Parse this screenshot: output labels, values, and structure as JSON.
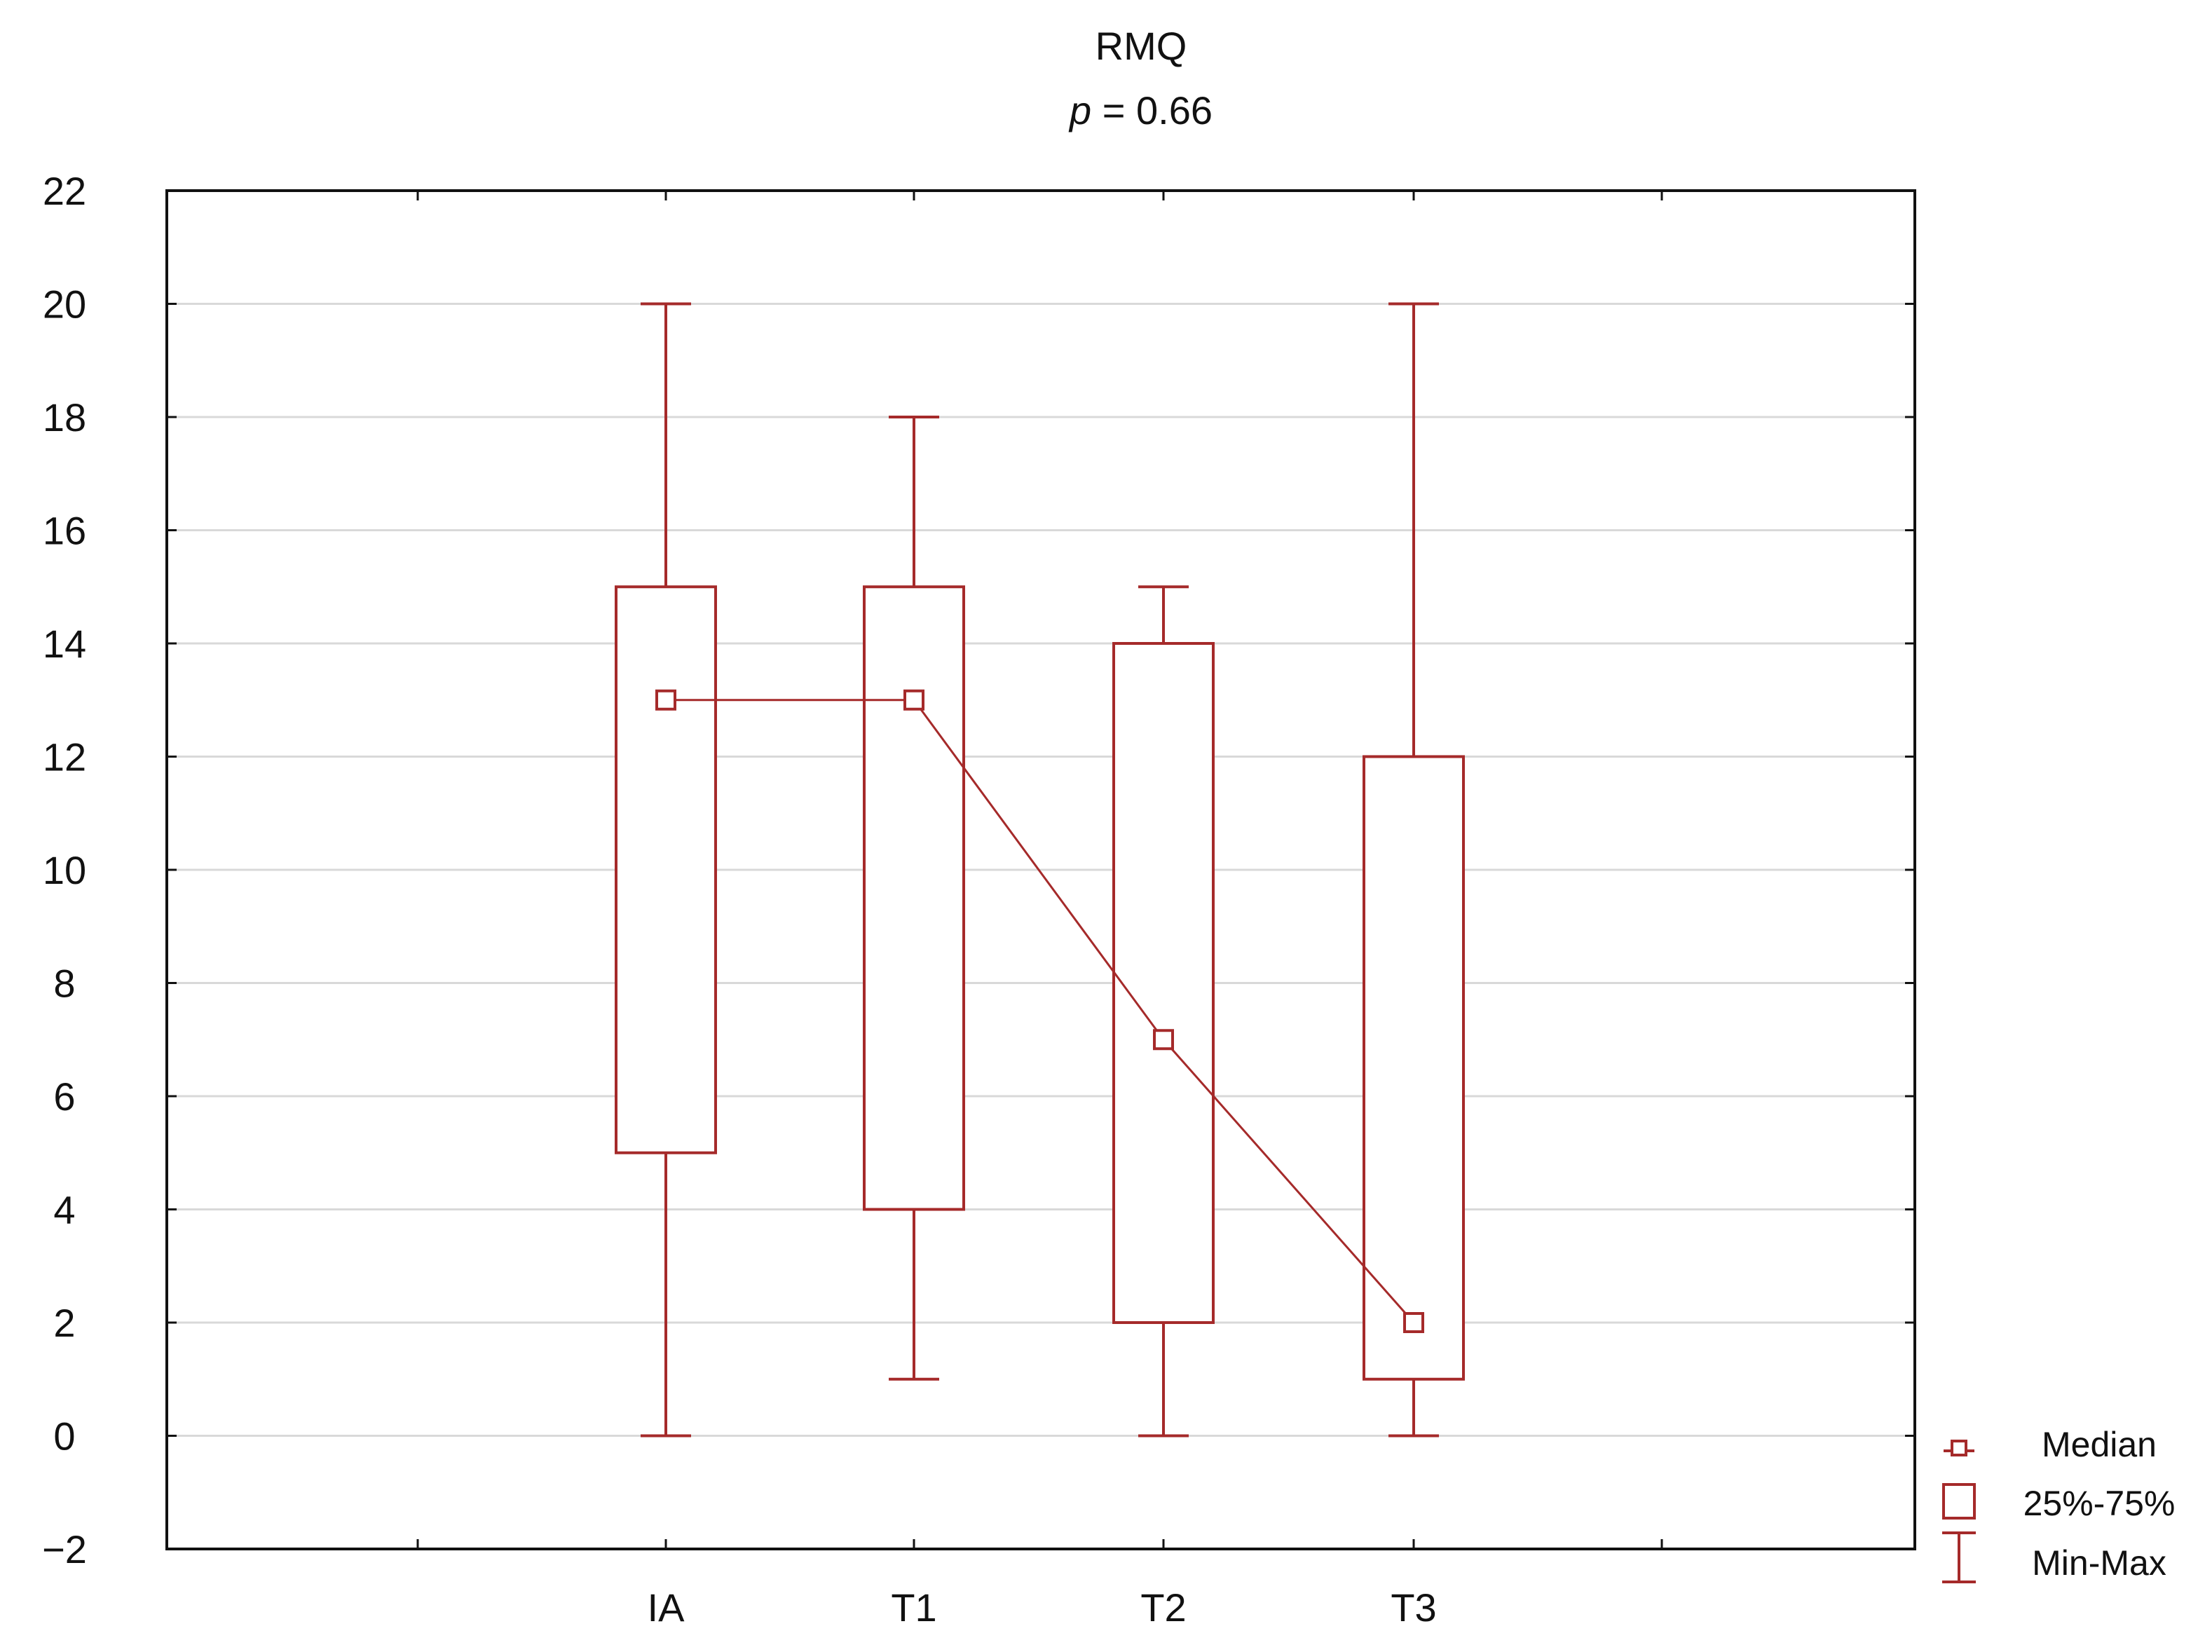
{
  "chart_data": {
    "type": "box",
    "title": "RMQ",
    "subtitle_prefix": "p",
    "subtitle_value": " = 0.66",
    "xlabel": "",
    "ylabel": "",
    "ylim": [
      -2,
      22
    ],
    "yticks": [
      -2,
      0,
      2,
      4,
      6,
      8,
      10,
      12,
      14,
      16,
      18,
      20,
      22
    ],
    "grid": true,
    "legend_position": "bottom-right outside",
    "categories": [
      "IA",
      "T1",
      "T2",
      "T3"
    ],
    "series": [
      {
        "category": "IA",
        "min": 0,
        "q1": 5,
        "median": 13,
        "q3": 15,
        "max": 20
      },
      {
        "category": "T1",
        "min": 1,
        "q1": 4,
        "median": 13,
        "q3": 15,
        "max": 18
      },
      {
        "category": "T2",
        "min": 0,
        "q1": 2,
        "median": 7,
        "q3": 14,
        "max": 15
      },
      {
        "category": "T3",
        "min": 0,
        "q1": 1,
        "median": 2,
        "q3": 12,
        "max": 20
      }
    ],
    "median_line": true,
    "legend": [
      {
        "key": "median",
        "label": "Median"
      },
      {
        "key": "box",
        "label": "25%-75%"
      },
      {
        "key": "whisker",
        "label": "Min-Max"
      }
    ],
    "colors": {
      "series": "#A52A2A",
      "axis": "#111111",
      "grid": "#D9D9D9"
    }
  }
}
